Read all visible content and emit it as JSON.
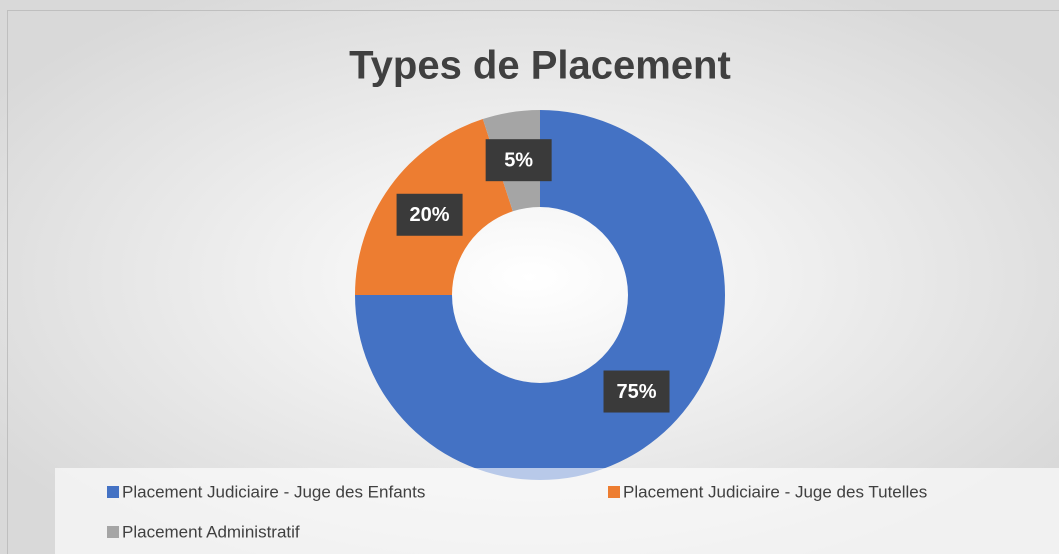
{
  "chart_data": {
    "type": "donut",
    "title": "Types de Placement",
    "categories": [
      "Placement Judiciaire - Juge des Enfants",
      "Placement Judiciaire - Juge des Tutelles",
      "Placement Administratif"
    ],
    "values": [
      75,
      20,
      5
    ],
    "value_labels": [
      "75%",
      "20%",
      "5%"
    ],
    "colors": [
      "#4472c4",
      "#ed7d31",
      "#a5a5a5"
    ],
    "legend": "bottom"
  }
}
